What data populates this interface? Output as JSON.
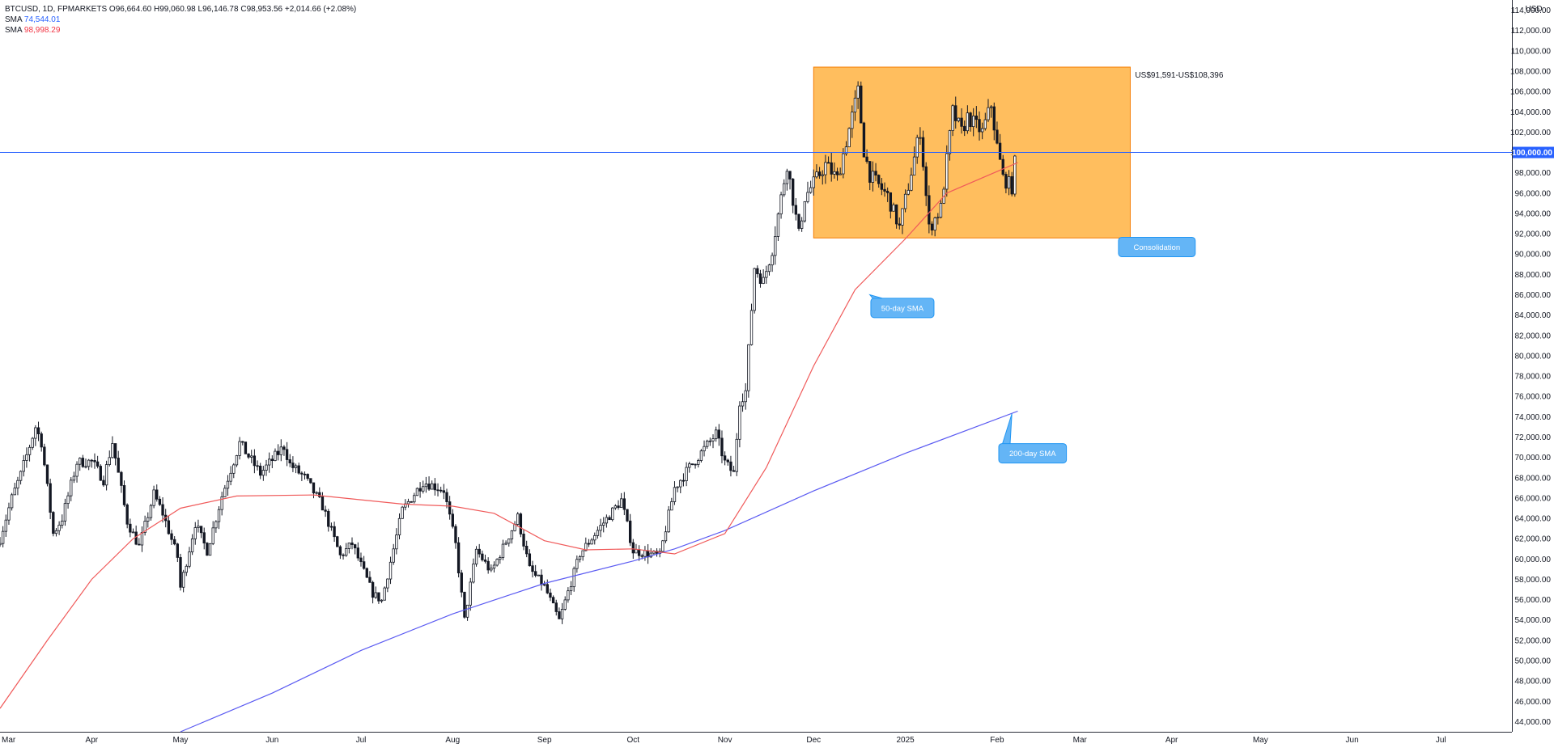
{
  "header": {
    "symbol": "BTCUSD, 1D, FPMARKETS",
    "open_label": "O",
    "open": "96,664.60",
    "high_label": "H",
    "high": "99,060.98",
    "low_label": "L",
    "low": "96,146.78",
    "close_label": "C",
    "close": "98,953.56",
    "change": "+2,014.66 (+2.08%)",
    "sma1_label": "SMA",
    "sma1_value": "74,544.01",
    "sma2_label": "SMA",
    "sma2_value": "98,998.29"
  },
  "colors": {
    "sma200": "#5b5bf2",
    "sma50": "#f05a5a",
    "zone_fill": "#ffb74d",
    "callout": "#64b5f6",
    "callout_border": "#2196f3",
    "price_line": "#2962ff",
    "candle": "#131722"
  },
  "chart_data": {
    "type": "candlestick",
    "currency": "USD",
    "x_range": [
      "2024-03-01",
      "2025-07-25"
    ],
    "ylim": [
      43000,
      115000
    ],
    "y_ticks": [
      44000,
      46000,
      48000,
      50000,
      52000,
      54000,
      56000,
      58000,
      60000,
      62000,
      64000,
      66000,
      68000,
      70000,
      72000,
      74000,
      76000,
      78000,
      80000,
      82000,
      84000,
      86000,
      88000,
      90000,
      92000,
      94000,
      96000,
      98000,
      100000,
      102000,
      104000,
      106000,
      108000,
      110000,
      112000,
      114000
    ],
    "y_tick_labels": [
      "44,000.00",
      "46,000.00",
      "48,000.00",
      "50,000.00",
      "52,000.00",
      "54,000.00",
      "56,000.00",
      "58,000.00",
      "60,000.00",
      "62,000.00",
      "64,000.00",
      "66,000.00",
      "68,000.00",
      "70,000.00",
      "72,000.00",
      "74,000.00",
      "76,000.00",
      "78,000.00",
      "80,000.00",
      "82,000.00",
      "84,000.00",
      "86,000.00",
      "88,000.00",
      "90,000.00",
      "92,000.00",
      "94,000.00",
      "96,000.00",
      "98,000.00",
      "100,000.00",
      "102,000.00",
      "104,000.00",
      "106,000.00",
      "108,000.00",
      "110,000.00",
      "112,000.00",
      "114,000.00"
    ],
    "x_ticks": [
      {
        "label": "Mar",
        "date": "2024-03-01"
      },
      {
        "label": "Apr",
        "date": "2024-04-01"
      },
      {
        "label": "May",
        "date": "2024-05-01"
      },
      {
        "label": "Jun",
        "date": "2024-06-01"
      },
      {
        "label": "Jul",
        "date": "2024-07-01"
      },
      {
        "label": "Aug",
        "date": "2024-08-01"
      },
      {
        "label": "Sep",
        "date": "2024-09-01"
      },
      {
        "label": "Oct",
        "date": "2024-10-01"
      },
      {
        "label": "Nov",
        "date": "2024-11-01"
      },
      {
        "label": "Dec",
        "date": "2024-12-01"
      },
      {
        "label": "2025",
        "date": "2025-01-01"
      },
      {
        "label": "Feb",
        "date": "2025-02-01"
      },
      {
        "label": "Mar",
        "date": "2025-03-01"
      },
      {
        "label": "Apr",
        "date": "2025-04-01"
      },
      {
        "label": "May",
        "date": "2025-05-01"
      },
      {
        "label": "Jun",
        "date": "2025-06-01"
      },
      {
        "label": "Jul",
        "date": "2025-07-01"
      }
    ],
    "price_line": {
      "value": 100000,
      "label": "100,000.00"
    },
    "close_keypoints": [
      {
        "date": "2024-03-01",
        "close": 62000
      },
      {
        "date": "2024-03-05",
        "close": 66000
      },
      {
        "date": "2024-03-08",
        "close": 68300
      },
      {
        "date": "2024-03-13",
        "close": 73000
      },
      {
        "date": "2024-03-15",
        "close": 71500
      },
      {
        "date": "2024-03-19",
        "close": 62500
      },
      {
        "date": "2024-03-22",
        "close": 64000
      },
      {
        "date": "2024-03-27",
        "close": 69500
      },
      {
        "date": "2024-04-01",
        "close": 69600
      },
      {
        "date": "2024-04-05",
        "close": 67800
      },
      {
        "date": "2024-04-08",
        "close": 71500
      },
      {
        "date": "2024-04-13",
        "close": 63700
      },
      {
        "date": "2024-04-17",
        "close": 61200
      },
      {
        "date": "2024-04-22",
        "close": 66400
      },
      {
        "date": "2024-04-25",
        "close": 64500
      },
      {
        "date": "2024-04-30",
        "close": 60200
      },
      {
        "date": "2024-05-01",
        "close": 57200
      },
      {
        "date": "2024-05-06",
        "close": 63500
      },
      {
        "date": "2024-05-10",
        "close": 60800
      },
      {
        "date": "2024-05-15",
        "close": 66200
      },
      {
        "date": "2024-05-21",
        "close": 71400
      },
      {
        "date": "2024-05-28",
        "close": 68400
      },
      {
        "date": "2024-06-05",
        "close": 71100
      },
      {
        "date": "2024-06-07",
        "close": 69300
      },
      {
        "date": "2024-06-12",
        "close": 68000
      },
      {
        "date": "2024-06-18",
        "close": 65200
      },
      {
        "date": "2024-06-24",
        "close": 60300
      },
      {
        "date": "2024-06-28",
        "close": 61500
      },
      {
        "date": "2024-07-05",
        "close": 56600
      },
      {
        "date": "2024-07-08",
        "close": 55900
      },
      {
        "date": "2024-07-15",
        "close": 64800
      },
      {
        "date": "2024-07-22",
        "close": 67600
      },
      {
        "date": "2024-07-29",
        "close": 66800
      },
      {
        "date": "2024-08-02",
        "close": 61400
      },
      {
        "date": "2024-08-05",
        "close": 54000
      },
      {
        "date": "2024-08-09",
        "close": 60900
      },
      {
        "date": "2024-08-14",
        "close": 58700
      },
      {
        "date": "2024-08-23",
        "close": 64100
      },
      {
        "date": "2024-08-27",
        "close": 59000
      },
      {
        "date": "2024-09-01",
        "close": 57300
      },
      {
        "date": "2024-09-06",
        "close": 53950
      },
      {
        "date": "2024-09-13",
        "close": 60500
      },
      {
        "date": "2024-09-20",
        "close": 63200
      },
      {
        "date": "2024-09-27",
        "close": 65800
      },
      {
        "date": "2024-10-01",
        "close": 60800
      },
      {
        "date": "2024-10-10",
        "close": 60300
      },
      {
        "date": "2024-10-15",
        "close": 67000
      },
      {
        "date": "2024-10-20",
        "close": 69000
      },
      {
        "date": "2024-10-29",
        "close": 72300
      },
      {
        "date": "2024-11-01",
        "close": 69500
      },
      {
        "date": "2024-11-04",
        "close": 68400
      },
      {
        "date": "2024-11-06",
        "close": 75600
      },
      {
        "date": "2024-11-08",
        "close": 76500
      },
      {
        "date": "2024-11-11",
        "close": 88700
      },
      {
        "date": "2024-11-14",
        "close": 87300
      },
      {
        "date": "2024-11-17",
        "close": 90500
      },
      {
        "date": "2024-11-22",
        "close": 98900
      },
      {
        "date": "2024-11-26",
        "close": 91900
      },
      {
        "date": "2024-11-28",
        "close": 95600
      },
      {
        "date": "2024-12-05",
        "close": 98800
      },
      {
        "date": "2024-12-09",
        "close": 97400
      },
      {
        "date": "2024-12-16",
        "close": 106000
      },
      {
        "date": "2024-12-18",
        "close": 100200
      },
      {
        "date": "2024-12-20",
        "close": 97800
      },
      {
        "date": "2024-12-26",
        "close": 95700
      },
      {
        "date": "2024-12-30",
        "close": 92600
      },
      {
        "date": "2025-01-06",
        "close": 102200
      },
      {
        "date": "2025-01-09",
        "close": 92500
      },
      {
        "date": "2025-01-13",
        "close": 94500
      },
      {
        "date": "2025-01-17",
        "close": 104000
      },
      {
        "date": "2025-01-20",
        "close": 102000
      },
      {
        "date": "2025-01-22",
        "close": 103500
      },
      {
        "date": "2025-01-27",
        "close": 102000
      },
      {
        "date": "2025-01-30",
        "close": 104700
      },
      {
        "date": "2025-02-01",
        "close": 100600
      },
      {
        "date": "2025-02-03",
        "close": 97500
      },
      {
        "date": "2025-02-06",
        "close": 96600
      },
      {
        "date": "2025-02-07",
        "close": 98950
      }
    ],
    "series": [
      {
        "name": "SMA",
        "period_note": "200-day SMA",
        "points": [
          {
            "date": "2024-05-01",
            "value": 43000
          },
          {
            "date": "2024-06-01",
            "value": 46800
          },
          {
            "date": "2024-07-01",
            "value": 51000
          },
          {
            "date": "2024-08-01",
            "value": 54600
          },
          {
            "date": "2024-09-01",
            "value": 57600
          },
          {
            "date": "2024-10-01",
            "value": 59800
          },
          {
            "date": "2024-10-15",
            "value": 61000
          },
          {
            "date": "2024-11-01",
            "value": 62800
          },
          {
            "date": "2024-12-01",
            "value": 66700
          },
          {
            "date": "2025-01-01",
            "value": 70400
          },
          {
            "date": "2025-02-08",
            "value": 74544
          }
        ]
      },
      {
        "name": "SMA",
        "period_note": "50-day SMA",
        "points": [
          {
            "date": "2024-03-01",
            "value": 45300
          },
          {
            "date": "2024-03-17",
            "value": 52000
          },
          {
            "date": "2024-04-01",
            "value": 58000
          },
          {
            "date": "2024-04-15",
            "value": 62000
          },
          {
            "date": "2024-05-01",
            "value": 65000
          },
          {
            "date": "2024-05-20",
            "value": 66200
          },
          {
            "date": "2024-06-15",
            "value": 66300
          },
          {
            "date": "2024-07-15",
            "value": 65400
          },
          {
            "date": "2024-08-01",
            "value": 65200
          },
          {
            "date": "2024-08-15",
            "value": 64500
          },
          {
            "date": "2024-09-01",
            "value": 61800
          },
          {
            "date": "2024-09-15",
            "value": 60900
          },
          {
            "date": "2024-10-01",
            "value": 61000
          },
          {
            "date": "2024-10-15",
            "value": 60500
          },
          {
            "date": "2024-11-01",
            "value": 62500
          },
          {
            "date": "2024-11-15",
            "value": 69000
          },
          {
            "date": "2024-12-01",
            "value": 79000
          },
          {
            "date": "2024-12-15",
            "value": 86500
          },
          {
            "date": "2025-01-01",
            "value": 91500
          },
          {
            "date": "2025-01-15",
            "value": 96000
          },
          {
            "date": "2025-02-08",
            "value": 98998
          }
        ]
      }
    ],
    "zone": {
      "x0": "2024-12-01",
      "x1": "2025-03-18",
      "y0": 91591,
      "y1": 108396,
      "label": "US$91,591-US$108,396"
    },
    "annotations": [
      {
        "text": "Consolidation",
        "date": "2025-03-27",
        "value": 90700
      },
      {
        "text": "50-day SMA",
        "date": "2024-12-31",
        "value": 84700
      },
      {
        "text": "200-day SMA",
        "date": "2025-02-13",
        "value": 70400
      }
    ]
  }
}
